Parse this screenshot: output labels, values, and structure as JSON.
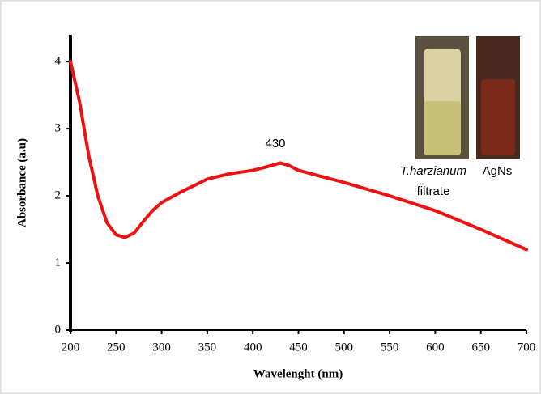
{
  "chart_data": {
    "type": "line",
    "x_label": "Wavelenght (nm)",
    "y_label": "Absorbance (a.u)",
    "x": [
      200,
      210,
      220,
      230,
      240,
      250,
      260,
      270,
      280,
      290,
      300,
      320,
      350,
      375,
      400,
      420,
      430,
      440,
      450,
      500,
      550,
      600,
      650,
      700
    ],
    "series": [
      {
        "name": "AgNs",
        "color": "#ee1111",
        "values": [
          4.0,
          3.4,
          2.6,
          2.0,
          1.6,
          1.42,
          1.38,
          1.45,
          1.62,
          1.78,
          1.9,
          2.05,
          2.25,
          2.33,
          2.38,
          2.45,
          2.49,
          2.45,
          2.38,
          2.2,
          2.0,
          1.78,
          1.5,
          1.2
        ]
      }
    ],
    "xlim": [
      200,
      700
    ],
    "ylim": [
      0,
      4.4
    ],
    "xticks": [
      200,
      250,
      300,
      350,
      400,
      450,
      500,
      550,
      600,
      650,
      700
    ],
    "yticks": [
      0,
      1,
      2,
      3,
      4
    ],
    "annotations": [
      "430",
      "T.harzianum",
      "filtrate",
      "AgNs"
    ]
  }
}
